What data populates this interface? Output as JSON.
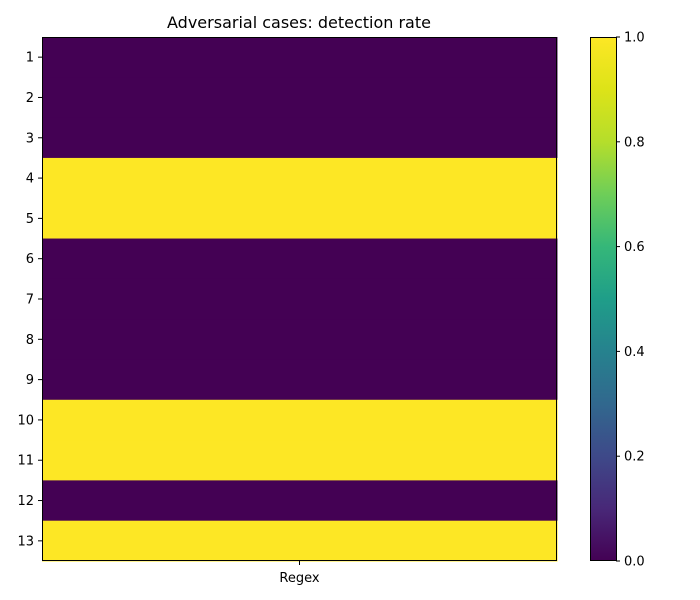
{
  "chart_data": {
    "type": "heatmap",
    "title": "Adversarial cases: detection rate",
    "x_categories": [
      "Regex"
    ],
    "y_categories": [
      "1",
      "2",
      "3",
      "4",
      "5",
      "6",
      "7",
      "8",
      "9",
      "10",
      "11",
      "12",
      "13"
    ],
    "values": [
      [
        0
      ],
      [
        0
      ],
      [
        0
      ],
      [
        1
      ],
      [
        1
      ],
      [
        0
      ],
      [
        0
      ],
      [
        0
      ],
      [
        0
      ],
      [
        1
      ],
      [
        1
      ],
      [
        0
      ],
      [
        1
      ]
    ],
    "colormap": "viridis",
    "vmin": 0,
    "vmax": 1,
    "colorbar_ticks": [
      "0.0",
      "0.2",
      "0.4",
      "0.6",
      "0.8",
      "1.0"
    ],
    "colors": {
      "low": "#440154",
      "high": "#fde725"
    }
  }
}
